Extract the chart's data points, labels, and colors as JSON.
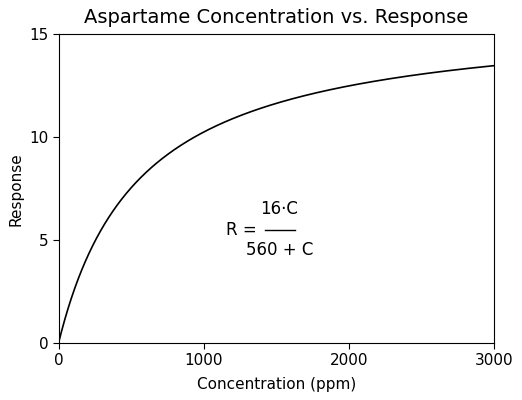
{
  "title": "Aspartame Concentration vs. Response",
  "xlabel": "Concentration (ppm)",
  "ylabel": "Response",
  "xlim": [
    0,
    3000
  ],
  "ylim": [
    0,
    15
  ],
  "xticks": [
    0,
    1000,
    2000,
    3000
  ],
  "yticks": [
    0,
    5,
    10,
    15
  ],
  "numerator": 16,
  "km": 560,
  "line_color": "#000000",
  "line_width": 1.2,
  "bg_color": "#ffffff",
  "title_fontsize": 14,
  "label_fontsize": 11,
  "tick_fontsize": 11,
  "formula_x_data": 1400,
  "formula_y_data": 5.5
}
